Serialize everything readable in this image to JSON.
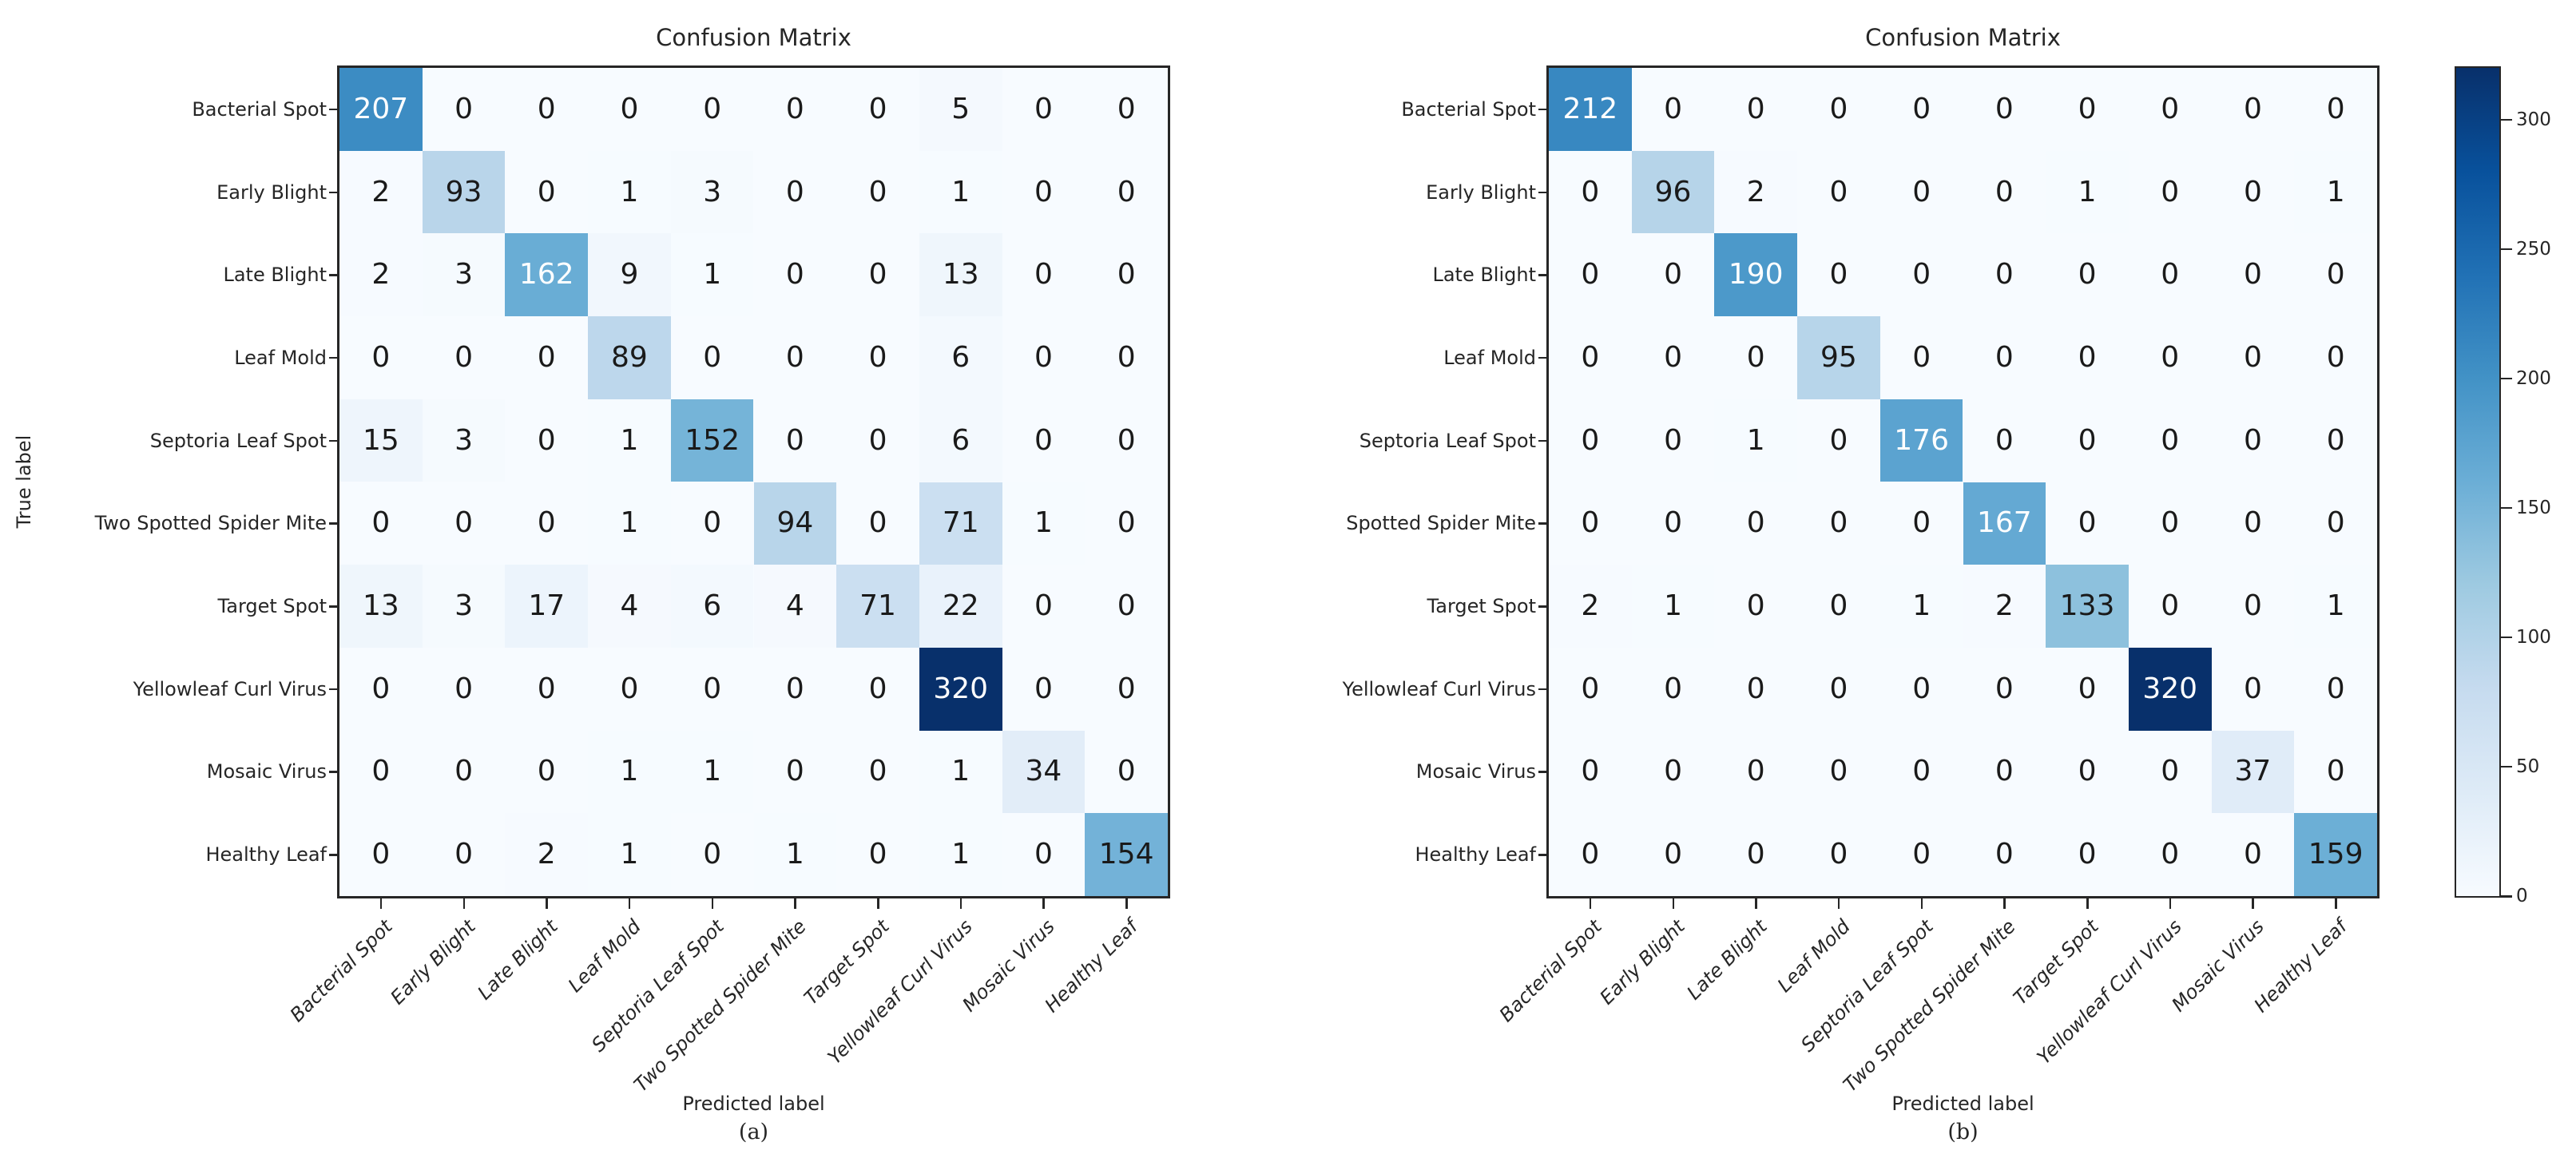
{
  "chart_data": [
    {
      "type": "heatmap",
      "title": "Confusion Matrix",
      "xlabel": "Predicted label",
      "ylabel": "True label",
      "caption": "(a)",
      "x_categories": [
        "Bacterial Spot",
        "Early Blight",
        "Late Blight",
        "Leaf Mold",
        "Septoria Leaf Spot",
        "Two Spotted Spider Mite",
        "Target Spot",
        "Yellowleaf Curl Virus",
        "Mosaic Virus",
        "Healthy Leaf"
      ],
      "y_categories": [
        "Bacterial Spot",
        "Early Blight",
        "Late Blight",
        "Leaf Mold",
        "Septoria Leaf Spot",
        "Two Spotted Spider Mite",
        "Target Spot",
        "Yellowleaf Curl Virus",
        "Mosaic Virus",
        "Healthy Leaf"
      ],
      "values": [
        [
          207,
          0,
          0,
          0,
          0,
          0,
          0,
          5,
          0,
          0
        ],
        [
          2,
          93,
          0,
          1,
          3,
          0,
          0,
          1,
          0,
          0
        ],
        [
          2,
          3,
          162,
          9,
          1,
          0,
          0,
          13,
          0,
          0
        ],
        [
          0,
          0,
          0,
          89,
          0,
          0,
          0,
          6,
          0,
          0
        ],
        [
          15,
          3,
          0,
          1,
          152,
          0,
          0,
          6,
          0,
          0
        ],
        [
          0,
          0,
          0,
          1,
          0,
          94,
          0,
          71,
          1,
          0
        ],
        [
          13,
          3,
          17,
          4,
          6,
          4,
          71,
          22,
          0,
          0
        ],
        [
          0,
          0,
          0,
          0,
          0,
          0,
          0,
          320,
          0,
          0
        ],
        [
          0,
          0,
          0,
          1,
          1,
          0,
          0,
          1,
          34,
          0
        ],
        [
          0,
          0,
          2,
          1,
          0,
          1,
          0,
          1,
          0,
          154
        ]
      ],
      "vmin": 0,
      "vmax": 320,
      "colormap": "Blues"
    },
    {
      "type": "heatmap",
      "title": "Confusion Matrix",
      "xlabel": "Predicted label",
      "ylabel": "",
      "caption": "(b)",
      "x_categories": [
        "Bacterial Spot",
        "Early Blight",
        "Late Blight",
        "Leaf Mold",
        "Septoria Leaf Spot",
        "Two Spotted Spider Mite",
        "Target Spot",
        "Yellowleaf Curl Virus",
        "Mosaic Virus",
        "Healthy Leaf"
      ],
      "y_categories": [
        "Bacterial Spot",
        "Early Blight",
        "Late Blight",
        "Leaf Mold",
        "Septoria Leaf Spot",
        "Spotted Spider Mite",
        "Target Spot",
        "Yellowleaf Curl Virus",
        "Mosaic Virus",
        "Healthy Leaf"
      ],
      "values": [
        [
          212,
          0,
          0,
          0,
          0,
          0,
          0,
          0,
          0,
          0
        ],
        [
          0,
          96,
          2,
          0,
          0,
          0,
          1,
          0,
          0,
          1
        ],
        [
          0,
          0,
          190,
          0,
          0,
          0,
          0,
          0,
          0,
          0
        ],
        [
          0,
          0,
          0,
          95,
          0,
          0,
          0,
          0,
          0,
          0
        ],
        [
          0,
          0,
          1,
          0,
          176,
          0,
          0,
          0,
          0,
          0
        ],
        [
          0,
          0,
          0,
          0,
          0,
          167,
          0,
          0,
          0,
          0
        ],
        [
          2,
          1,
          0,
          0,
          1,
          2,
          133,
          0,
          0,
          1
        ],
        [
          0,
          0,
          0,
          0,
          0,
          0,
          0,
          320,
          0,
          0
        ],
        [
          0,
          0,
          0,
          0,
          0,
          0,
          0,
          0,
          37,
          0
        ],
        [
          0,
          0,
          0,
          0,
          0,
          0,
          0,
          0,
          0,
          159
        ]
      ],
      "vmin": 0,
      "vmax": 320,
      "colormap": "Blues"
    }
  ],
  "colorbar": {
    "ticks": [
      "0",
      "50",
      "100",
      "150",
      "200",
      "250",
      "300"
    ],
    "tick_values": [
      0,
      50,
      100,
      150,
      200,
      250,
      300
    ],
    "vmin": 0,
    "vmax": 320,
    "colormap": "Blues",
    "min_color": "#f7fbff",
    "max_color": "#08306b",
    "accent_mid_color": "#3a87c2",
    "text_color": "#262626"
  }
}
